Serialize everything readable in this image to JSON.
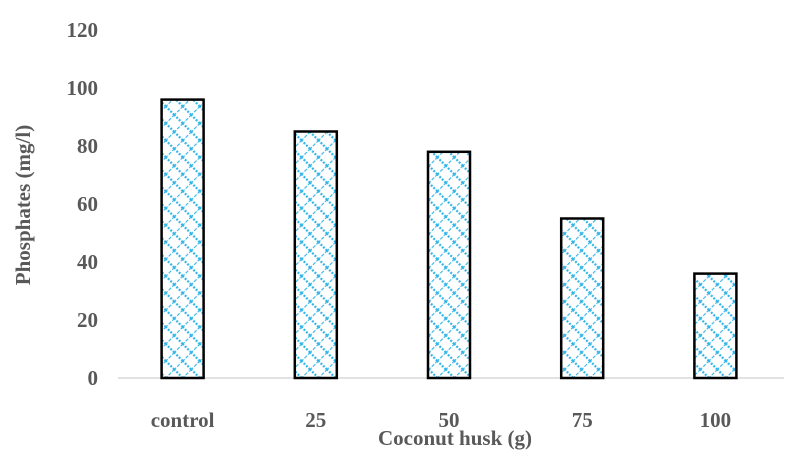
{
  "chart_data": {
    "type": "bar",
    "title": "",
    "xlabel": "Coconut husk (g)",
    "ylabel": "Phosphates (mg/l)",
    "categories": [
      "control",
      "25",
      "50",
      "75",
      "100"
    ],
    "values": [
      96,
      85,
      78,
      55,
      36
    ],
    "ylim": [
      0,
      120
    ],
    "yticks": [
      "0",
      "20",
      "40",
      "60",
      "80",
      "100",
      "120"
    ],
    "grid": false,
    "legend": "none",
    "bar_pattern": "blue-crosshatch",
    "colors": {
      "bar_fill": "#ffffff",
      "bar_pattern": "#33b5e8",
      "bar_stroke": "#000000",
      "axis_line": "#d9d9d9",
      "text": "#595959"
    }
  }
}
